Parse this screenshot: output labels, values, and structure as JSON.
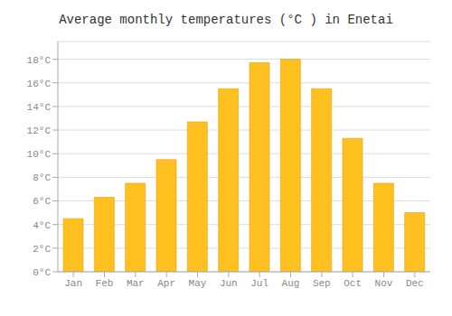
{
  "chart_data": {
    "type": "bar",
    "title": "Average monthly temperatures (°C ) in Enetai",
    "categories": [
      "Jan",
      "Feb",
      "Mar",
      "Apr",
      "May",
      "Jun",
      "Jul",
      "Aug",
      "Sep",
      "Oct",
      "Nov",
      "Dec"
    ],
    "values": [
      4.5,
      6.3,
      7.5,
      9.5,
      12.7,
      15.5,
      17.7,
      18.0,
      15.5,
      11.3,
      7.5,
      5.0
    ],
    "color": "#FFC020",
    "ylim": [
      0,
      19.5
    ],
    "yticks": [
      {
        "value": 0,
        "label": "0°C"
      },
      {
        "value": 2,
        "label": "2°C"
      },
      {
        "value": 4,
        "label": "4°C"
      },
      {
        "value": 6,
        "label": "6°C"
      },
      {
        "value": 8,
        "label": "8°C"
      },
      {
        "value": 10,
        "label": "10°C"
      },
      {
        "value": 12,
        "label": "12°C"
      },
      {
        "value": 14,
        "label": "14°C"
      },
      {
        "value": 16,
        "label": "16°C"
      },
      {
        "value": 18,
        "label": "18°C"
      }
    ],
    "grid": true
  }
}
